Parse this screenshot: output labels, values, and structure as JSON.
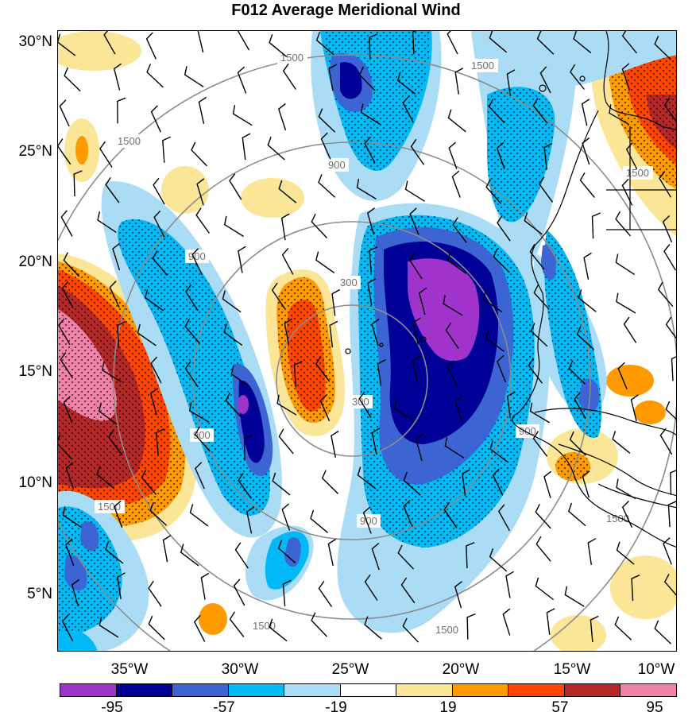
{
  "title": "F012 Average Meridional Wind",
  "lat_labels": [
    "30°N",
    "25°N",
    "20°N",
    "15°N",
    "10°N",
    "5°N"
  ],
  "lon_labels": [
    "35°W",
    "30°W",
    "25°W",
    "20°W",
    "15°W",
    "10°W"
  ],
  "colorbar": {
    "colors": [
      "#a033cc",
      "#000096",
      "#3c64d2",
      "#00b9f5",
      "#aadcf5",
      "#ffffff",
      "#fae696",
      "#ff9b00",
      "#ff4600",
      "#b42828",
      "#f082aa"
    ],
    "labels": [
      "-95",
      "-57",
      "-19",
      "19",
      "57",
      "95"
    ]
  },
  "contour_labels": {
    "c1500": "1500",
    "c900": "900",
    "c300": "300"
  }
}
